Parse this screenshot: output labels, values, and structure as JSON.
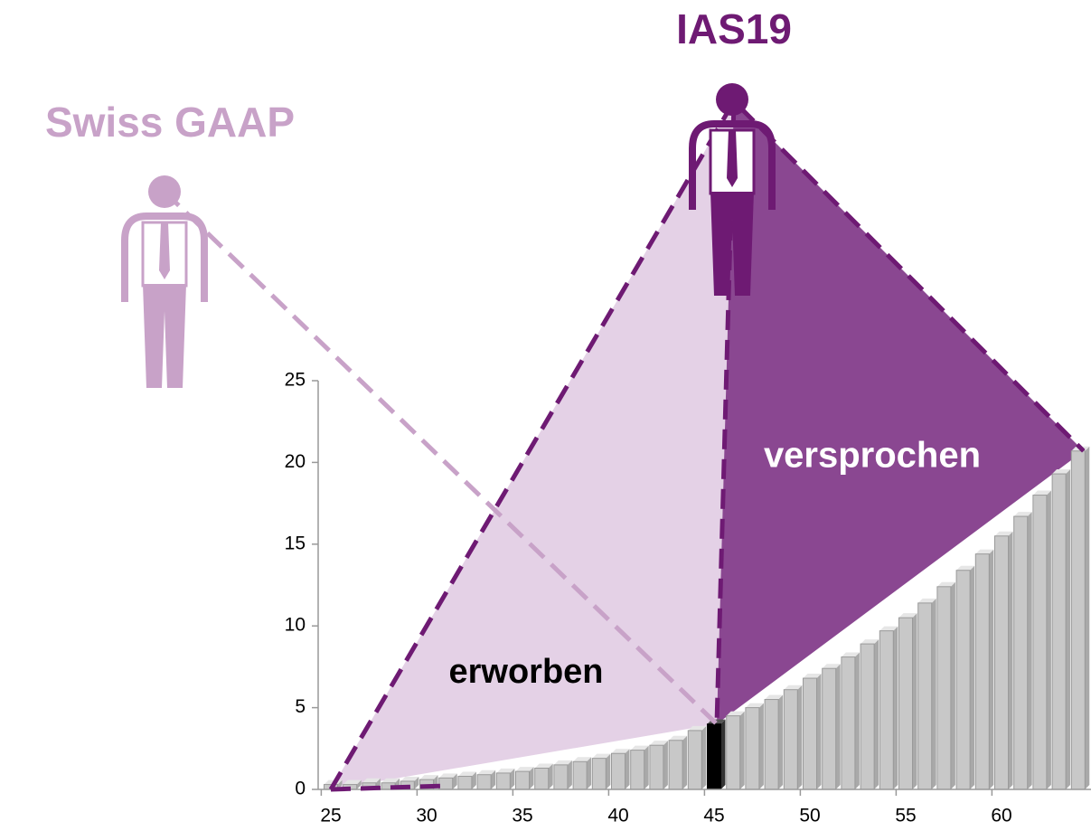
{
  "chart_data": {
    "type": "bar",
    "categories": [
      25,
      26,
      27,
      28,
      29,
      30,
      31,
      32,
      33,
      34,
      35,
      36,
      37,
      38,
      39,
      40,
      41,
      42,
      43,
      44,
      45,
      46,
      47,
      48,
      49,
      50,
      51,
      52,
      53,
      54,
      55,
      56,
      57,
      58,
      59,
      60,
      61,
      62,
      63,
      64
    ],
    "values": [
      0.3,
      0.3,
      0.4,
      0.4,
      0.5,
      0.6,
      0.7,
      0.8,
      0.9,
      1.0,
      1.1,
      1.3,
      1.5,
      1.7,
      1.9,
      2.2,
      2.4,
      2.7,
      3.0,
      3.6,
      4.0,
      4.5,
      5.0,
      5.5,
      6.1,
      6.8,
      7.4,
      8.1,
      8.9,
      9.7,
      10.5,
      11.4,
      12.4,
      13.4,
      14.4,
      15.5,
      16.7,
      18.0,
      19.3,
      20.7
    ],
    "colors": [
      "#c8c8c8",
      "#c8c8c8",
      "#c8c8c8",
      "#c8c8c8",
      "#c8c8c8",
      "#c8c8c8",
      "#c8c8c8",
      "#c8c8c8",
      "#c8c8c8",
      "#c8c8c8",
      "#c8c8c8",
      "#c8c8c8",
      "#c8c8c8",
      "#c8c8c8",
      "#c8c8c8",
      "#c8c8c8",
      "#c8c8c8",
      "#c8c8c8",
      "#c8c8c8",
      "#c8c8c8",
      "#000000",
      "#c8c8c8",
      "#c8c8c8",
      "#c8c8c8",
      "#c8c8c8",
      "#c8c8c8",
      "#c8c8c8",
      "#c8c8c8",
      "#c8c8c8",
      "#c8c8c8",
      "#c8c8c8",
      "#c8c8c8",
      "#c8c8c8",
      "#c8c8c8",
      "#c8c8c8",
      "#c8c8c8",
      "#c8c8c8",
      "#c8c8c8",
      "#c8c8c8",
      "#c8c8c8"
    ],
    "ylim": [
      0,
      25
    ],
    "yticks": [
      0,
      5,
      10,
      15,
      20,
      25
    ],
    "xticks": [
      25,
      30,
      35,
      40,
      45,
      50,
      55,
      60
    ],
    "annotations": {
      "ias19": "IAS19",
      "swiss_gaap": "Swiss GAAP",
      "promised": "versprochen",
      "earned": "erworben"
    }
  }
}
